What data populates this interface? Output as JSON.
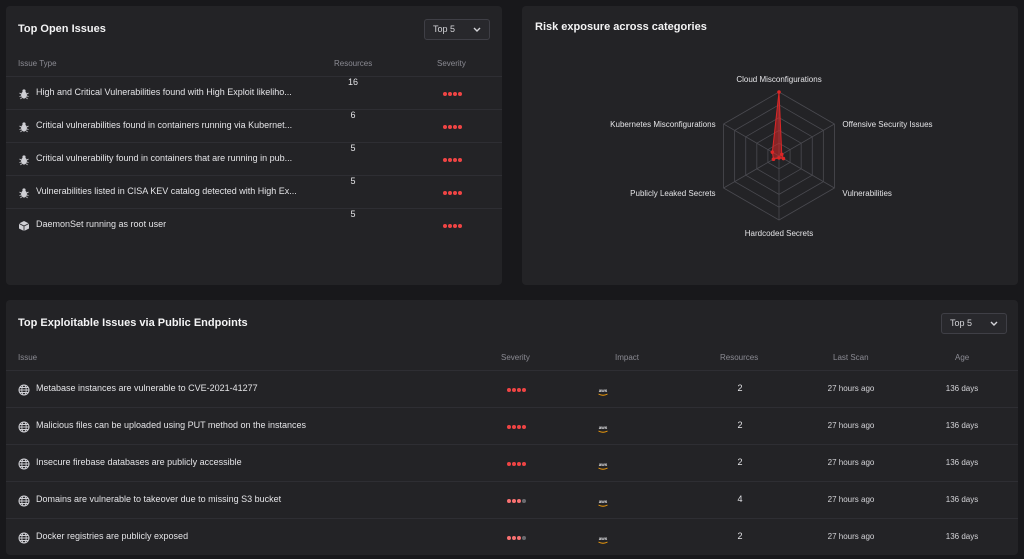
{
  "open_issues": {
    "title": "Top Open Issues",
    "dropdown": "Top 5",
    "columns": {
      "issue_type": "Issue Type",
      "resources": "Resources",
      "severity": "Severity"
    },
    "rows": [
      {
        "icon": "bug-icon",
        "text": "High and Critical Vulnerabilities found with High Exploit likeliho...",
        "resources": "16",
        "severity": 4
      },
      {
        "icon": "bug-icon",
        "text": "Critical vulnerabilities found in containers running via Kubernet...",
        "resources": "6",
        "severity": 4
      },
      {
        "icon": "bug-icon",
        "text": "Critical vulnerability found in containers that are running in pub...",
        "resources": "5",
        "severity": 4
      },
      {
        "icon": "bug-icon",
        "text": "Vulnerabilities listed in CISA KEV catalog detected with High Ex...",
        "resources": "5",
        "severity": 4
      },
      {
        "icon": "cube-icon",
        "text": "DaemonSet running as root user",
        "resources": "5",
        "severity": 4
      }
    ]
  },
  "radar": {
    "title": "Risk exposure across categories",
    "chart_data": {
      "type": "radar",
      "categories": [
        "Cloud Misconfigurations",
        "Offensive Security Issues",
        "Vulnerabilities",
        "Hardcoded Secrets",
        "Publicly Leaked Secrets",
        "Kubernetes Misconfigurations"
      ],
      "values": [
        1.0,
        0.05,
        0.08,
        0.03,
        0.1,
        0.12
      ],
      "color": "#dc2626",
      "rings": 5
    }
  },
  "exploitable": {
    "title": "Top Exploitable Issues via Public Endpoints",
    "dropdown": "Top 5",
    "columns": {
      "issue": "Issue",
      "severity": "Severity",
      "impact": "Impact",
      "resources": "Resources",
      "last_scan": "Last Scan",
      "age": "Age"
    },
    "rows": [
      {
        "text": "Metabase instances are vulnerable to CVE-2021-41277",
        "severity": 4,
        "impact": "aws",
        "resources": "2",
        "last_scan": "27 hours ago",
        "age": "136 days"
      },
      {
        "text": "Malicious files can be uploaded using PUT method on the instances",
        "severity": 4,
        "impact": "aws",
        "resources": "2",
        "last_scan": "27 hours ago",
        "age": "136 days"
      },
      {
        "text": "Insecure firebase databases are publicly accessible",
        "severity": 4,
        "impact": "aws",
        "resources": "2",
        "last_scan": "27 hours ago",
        "age": "136 days"
      },
      {
        "text": "Domains are vulnerable to takeover due to missing S3 bucket",
        "severity": 3,
        "impact": "aws",
        "resources": "4",
        "last_scan": "27 hours ago",
        "age": "136 days"
      },
      {
        "text": "Docker registries are publicly exposed",
        "severity": 3,
        "impact": "aws",
        "resources": "2",
        "last_scan": "27 hours ago",
        "age": "136 days"
      }
    ]
  },
  "colors": {
    "critical": "#ef4444",
    "high": "#f87171",
    "muted": "#6b6b70",
    "card": "#232326",
    "background": "#18181b"
  }
}
